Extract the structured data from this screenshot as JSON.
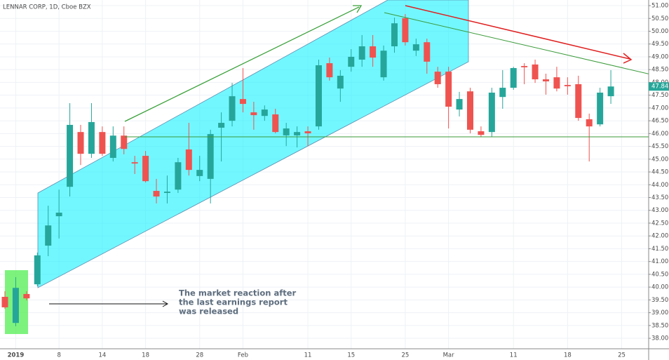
{
  "chart_data": {
    "type": "candlestick",
    "title": "LENNAR CORP, 1D, Cboe BZX",
    "categories": [
      null,
      "2019",
      null,
      null,
      null,
      "8",
      null,
      null,
      null,
      "14",
      null,
      null,
      null,
      "18",
      null,
      null,
      null,
      null,
      "28",
      null,
      null,
      null,
      "Feb",
      null,
      null,
      null,
      null,
      null,
      "11",
      null,
      null,
      null,
      "15",
      null,
      null,
      null,
      null,
      "25",
      null,
      null,
      null,
      "Mar",
      null,
      null,
      null,
      null,
      null,
      "11",
      null,
      null,
      null,
      null,
      "18",
      null,
      null,
      null,
      null,
      "25"
    ],
    "open": [
      39.62,
      38.6,
      39.73,
      40.11,
      41.62,
      42.77,
      43.92,
      46.06,
      45.21,
      46.06,
      45.05,
      45.92,
      44.88,
      45.13,
      43.76,
      43.68,
      43.81,
      45.38,
      44.34,
      44.23,
      46.23,
      46.5,
      47.35,
      46.83,
      46.69,
      46.75,
      45.93,
      45.93,
      46.09,
      46.28,
      48.75,
      47.76,
      48.61,
      48.89,
      49.41,
      48.2,
      49.41,
      50.51,
      49.24,
      49.57,
      48.42,
      48.42,
      46.94,
      47.65,
      46.09,
      46.06,
      47.43,
      47.79,
      48.64,
      48.7,
      48.12,
      48.2,
      47.9,
      47.93,
      46.56,
      46.36,
      47.46,
      null
    ],
    "high": [
      39.84,
      40.39,
      39.84,
      41.35,
      43.18,
      43.81,
      47.19,
      46.34,
      47.19,
      46.28,
      46.28,
      46.28,
      45.13,
      45.32,
      44.23,
      44.36,
      45.05,
      46.42,
      45.13,
      46.15,
      46.83,
      47.98,
      48.56,
      47.24,
      47.1,
      46.97,
      46.42,
      46.28,
      46.28,
      48.89,
      48.97,
      48.48,
      49.3,
      49.85,
      49.85,
      49.44,
      50.53,
      50.67,
      49.71,
      49.71,
      48.61,
      48.61,
      47.63,
      47.79,
      46.28,
      47.79,
      48.48,
      48.61,
      48.75,
      48.89,
      48.34,
      48.61,
      48.2,
      48.26,
      46.78,
      47.79,
      48.48,
      null
    ],
    "low": [
      39.15,
      38.47,
      39.48,
      40.03,
      41.21,
      41.9,
      43.54,
      44.77,
      45.05,
      45.13,
      44.91,
      45.19,
      44.42,
      44.09,
      43.27,
      43.27,
      43.68,
      44.36,
      44.14,
      43.27,
      44.91,
      46.28,
      46.83,
      46.15,
      46.5,
      46.01,
      45.51,
      45.46,
      45.51,
      46.15,
      48.07,
      47.24,
      48.42,
      48.61,
      48.61,
      48.07,
      49.16,
      49.44,
      49.03,
      48.34,
      47.79,
      46.2,
      46.67,
      46.01,
      45.87,
      45.87,
      46.97,
      47.71,
      47.93,
      47.98,
      47.52,
      47.65,
      47.52,
      46.5,
      44.91,
      46.28,
      47.16,
      null
    ],
    "close": [
      39.21,
      39.97,
      39.56,
      41.24,
      42.41,
      42.91,
      46.34,
      45.21,
      46.45,
      45.21,
      45.92,
      45.4,
      44.83,
      44.14,
      43.54,
      43.73,
      44.88,
      44.58,
      44.58,
      45.98,
      46.42,
      47.46,
      47.16,
      46.72,
      46.94,
      46.06,
      46.2,
      46.06,
      46.01,
      48.67,
      48.2,
      48.26,
      49.0,
      49.41,
      48.97,
      49.24,
      50.31,
      49.57,
      49.49,
      48.81,
      47.93,
      47.05,
      47.35,
      46.15,
      45.95,
      47.6,
      47.79,
      48.56,
      48.59,
      48.12,
      48.04,
      47.76,
      47.85,
      46.61,
      46.28,
      47.6,
      47.84,
      null
    ],
    "up_color": "#26a69a",
    "down_color": "#ef5350",
    "last_price": 47.84,
    "ylim": [
      37.59,
      51.22
    ],
    "yticks": [
      {
        "value": 38,
        "label": "38.00"
      },
      {
        "value": 38.5,
        "label": "38.50"
      },
      {
        "value": 39,
        "label": "39.00"
      },
      {
        "value": 39.5,
        "label": "39.50"
      },
      {
        "value": 40,
        "label": "40.00"
      },
      {
        "value": 40.5,
        "label": "40.50"
      },
      {
        "value": 41,
        "label": "41.00"
      },
      {
        "value": 41.5,
        "label": "41.50"
      },
      {
        "value": 42,
        "label": "42.00"
      },
      {
        "value": 42.5,
        "label": "42.50"
      },
      {
        "value": 43,
        "label": "43.00"
      },
      {
        "value": 43.5,
        "label": "43.50"
      },
      {
        "value": 44,
        "label": "44.00"
      },
      {
        "value": 44.5,
        "label": "44.50"
      },
      {
        "value": 45,
        "label": "45.00"
      },
      {
        "value": 45.5,
        "label": "45.50"
      },
      {
        "value": 46,
        "label": "46.00"
      },
      {
        "value": 46.5,
        "label": "46.50"
      },
      {
        "value": 47,
        "label": "47.00"
      },
      {
        "value": 47.5,
        "label": "47.50"
      },
      {
        "value": 48,
        "label": "48.00"
      },
      {
        "value": 48.5,
        "label": "48.50"
      },
      {
        "value": 49,
        "label": "49.00"
      },
      {
        "value": 49.5,
        "label": "49.50"
      },
      {
        "value": 50,
        "label": "50.00"
      },
      {
        "value": 50.5,
        "label": "50.50"
      },
      {
        "value": 51,
        "label": "51.00"
      }
    ],
    "grid": true,
    "annotation": [
      "The market reaction after",
      "the last earnings report",
      "was released"
    ]
  }
}
